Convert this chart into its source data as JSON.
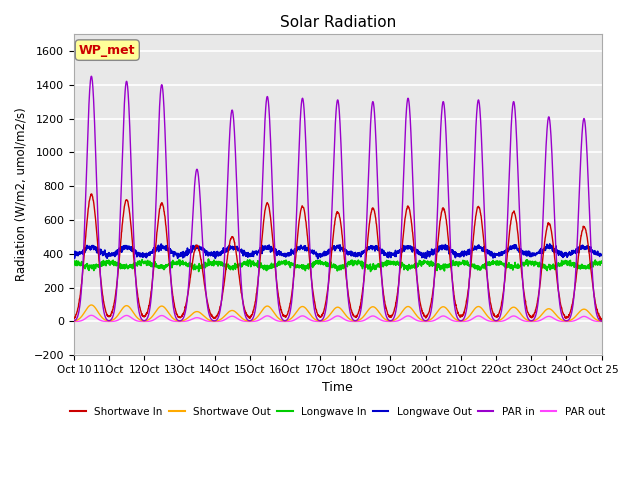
{
  "title": "Solar Radiation",
  "xlabel": "Time",
  "ylabel": "Radiation (W/m2, umol/m2/s)",
  "ylim": [
    -200,
    1700
  ],
  "yticks": [
    -200,
    0,
    200,
    400,
    600,
    800,
    1000,
    1200,
    1400,
    1600
  ],
  "background_color": "#ffffff",
  "plot_bg_color": "#e8e8e8",
  "grid_color": "#ffffff",
  "legend_items": [
    "Shortwave In",
    "Shortwave Out",
    "Longwave In",
    "Longwave Out",
    "PAR in",
    "PAR out"
  ],
  "line_colors": {
    "shortwave_in": "#cc0000",
    "shortwave_out": "#ffaa00",
    "longwave_in": "#00cc00",
    "longwave_out": "#0000cc",
    "par_in": "#9900cc",
    "par_out": "#ff44ff"
  },
  "annotation_text": "WP_met",
  "annotation_color": "#cc0000",
  "annotation_bg": "#ffff99",
  "n_days": 15,
  "points_per_day": 144,
  "start_day": 10
}
